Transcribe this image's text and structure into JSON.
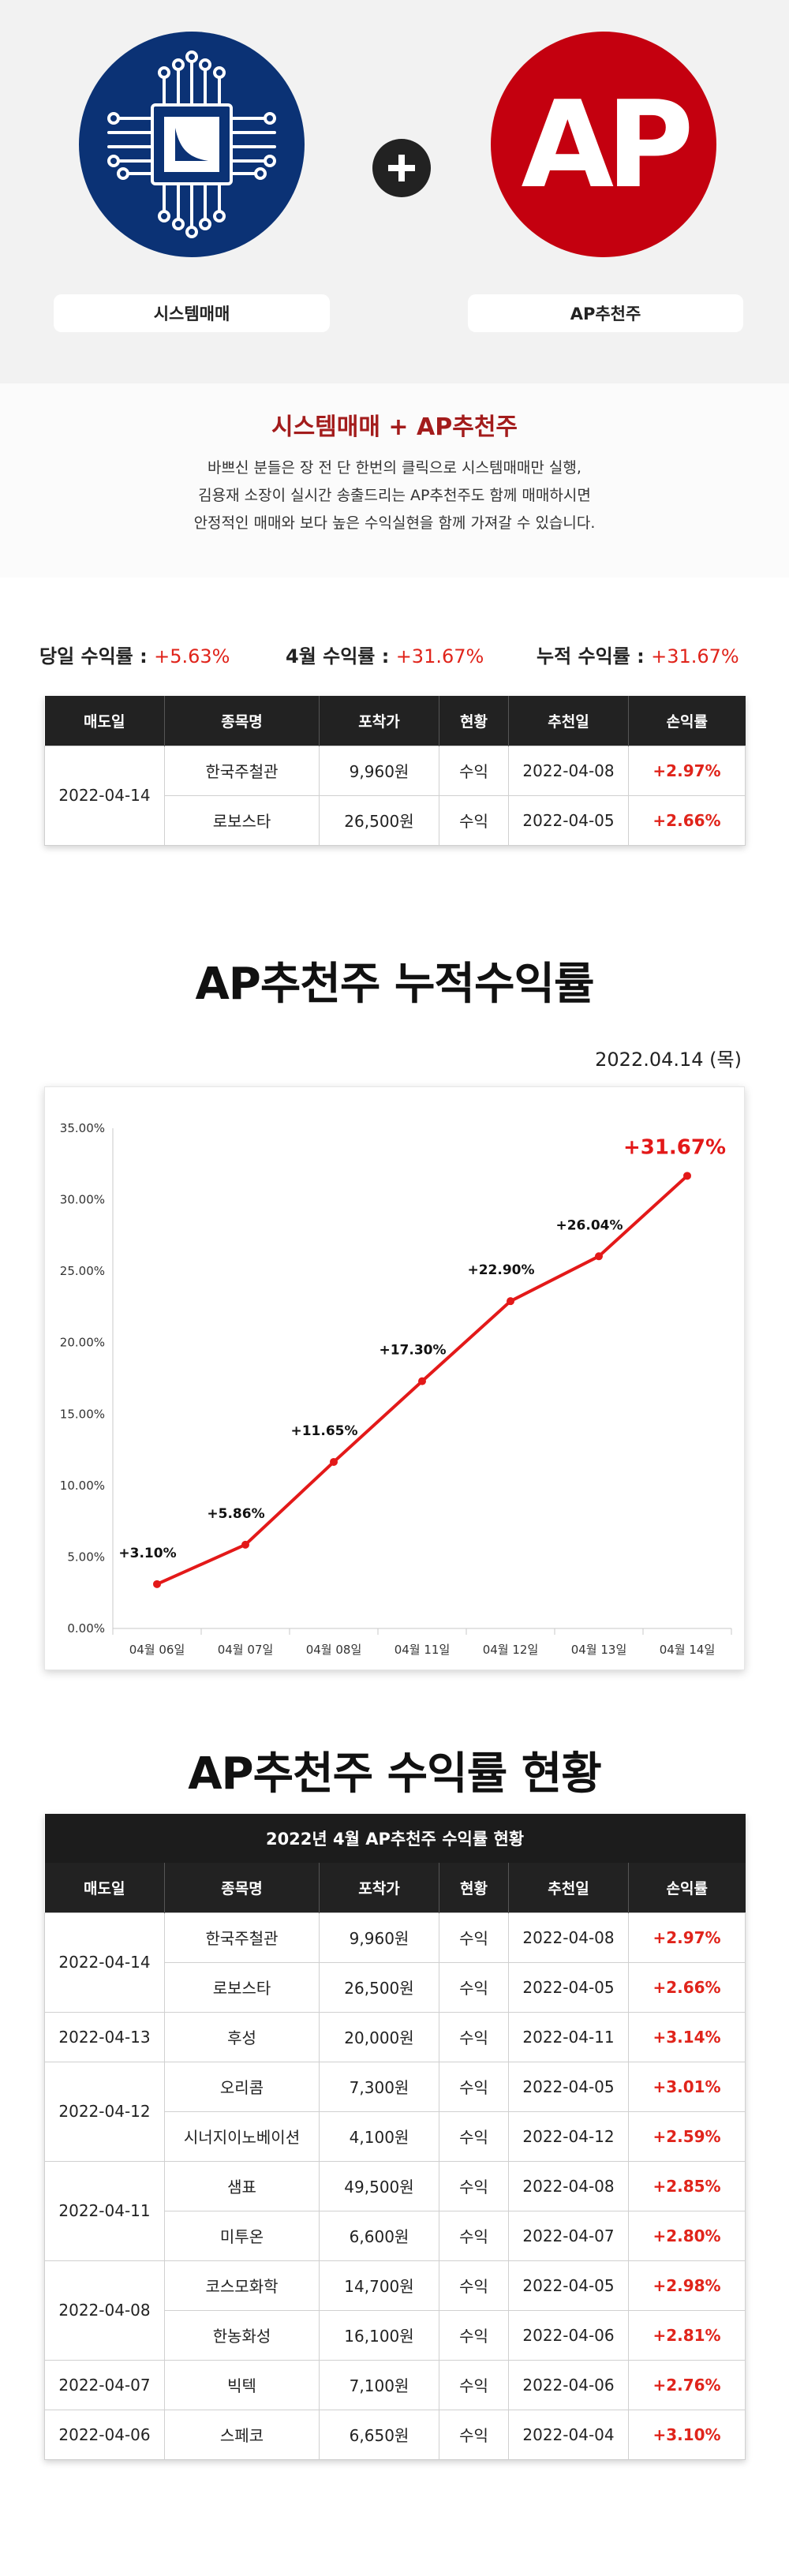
{
  "hero": {
    "left_label": "시스템매매",
    "right_label": "AP추천주",
    "right_logo_text": "AP",
    "colors": {
      "navy": "#0b3275",
      "red": "#c4000f"
    }
  },
  "intro": {
    "title": "시스템매매 + AP추천주",
    "lines": [
      "바쁘신 분들은 장 전 단 한번의 클릭으로 시스템매매만 실행,",
      "김용재 소장이 실시간 송출드리는 AP추천주도 함께 매매하시면",
      "안정적인 매매와 보다 높은 수익실현을 함께 가져갈 수 있습니다."
    ]
  },
  "returns": {
    "today_label": "당일 수익률 : ",
    "today_value": "+5.63%",
    "month_label": "4월 수익률 : ",
    "month_value": "+31.67%",
    "cum_label": "누적 수익률 : ",
    "cum_value": "+31.67%"
  },
  "columns": [
    "매도일",
    "종목명",
    "포착가",
    "현황",
    "추천일",
    "손익률"
  ],
  "today_table": {
    "groups": [
      {
        "date": "2022-04-14",
        "rows": [
          {
            "name": "한국주철관",
            "price": "9,960원",
            "status": "수익",
            "rec": "2022-04-08",
            "pct": "+2.97%"
          },
          {
            "name": "로보스타",
            "price": "26,500원",
            "status": "수익",
            "rec": "2022-04-05",
            "pct": "+2.66%"
          }
        ]
      }
    ]
  },
  "chart_section": {
    "title": "AP추천주 누적수익률",
    "date": "2022.04.14 (목)"
  },
  "chart_data": {
    "type": "line",
    "title": "",
    "categories": [
      "04월 06일",
      "04월 07일",
      "04월 08일",
      "04월 11일",
      "04월 12일",
      "04월 13일",
      "04월 14일"
    ],
    "series": [
      {
        "values": [
          3.1,
          5.86,
          11.65,
          17.3,
          22.9,
          26.04,
          31.67
        ]
      }
    ],
    "data_labels": [
      "+3.10%",
      "+5.86%",
      "+11.65%",
      "+17.30%",
      "+22.90%",
      "+26.04%",
      "+31.67%"
    ],
    "y_ticks": [
      "0.00%",
      "5.00%",
      "10.00%",
      "15.00%",
      "20.00%",
      "25.00%",
      "30.00%",
      "35.00%"
    ],
    "ylim": [
      0,
      35
    ],
    "grid": false,
    "legend": "none",
    "line_color": "#e31919"
  },
  "status_section": {
    "title": "AP추천주 수익률 현황",
    "table_caption": "2022년 4월 AP추천주 수익률 현황",
    "groups": [
      {
        "date": "2022-04-14",
        "rows": [
          {
            "name": "한국주철관",
            "price": "9,960원",
            "status": "수익",
            "rec": "2022-04-08",
            "pct": "+2.97%"
          },
          {
            "name": "로보스타",
            "price": "26,500원",
            "status": "수익",
            "rec": "2022-04-05",
            "pct": "+2.66%"
          }
        ]
      },
      {
        "date": "2022-04-13",
        "rows": [
          {
            "name": "후성",
            "price": "20,000원",
            "status": "수익",
            "rec": "2022-04-11",
            "pct": "+3.14%"
          }
        ]
      },
      {
        "date": "2022-04-12",
        "rows": [
          {
            "name": "오리콤",
            "price": "7,300원",
            "status": "수익",
            "rec": "2022-04-05",
            "pct": "+3.01%"
          },
          {
            "name": "시너지이노베이션",
            "price": "4,100원",
            "status": "수익",
            "rec": "2022-04-12",
            "pct": "+2.59%"
          }
        ]
      },
      {
        "date": "2022-04-11",
        "rows": [
          {
            "name": "샘표",
            "price": "49,500원",
            "status": "수익",
            "rec": "2022-04-08",
            "pct": "+2.85%"
          },
          {
            "name": "미투온",
            "price": "6,600원",
            "status": "수익",
            "rec": "2022-04-07",
            "pct": "+2.80%"
          }
        ]
      },
      {
        "date": "2022-04-08",
        "rows": [
          {
            "name": "코스모화학",
            "price": "14,700원",
            "status": "수익",
            "rec": "2022-04-05",
            "pct": "+2.98%"
          },
          {
            "name": "한농화성",
            "price": "16,100원",
            "status": "수익",
            "rec": "2022-04-06",
            "pct": "+2.81%"
          }
        ]
      },
      {
        "date": "2022-04-07",
        "rows": [
          {
            "name": "빅텍",
            "price": "7,100원",
            "status": "수익",
            "rec": "2022-04-06",
            "pct": "+2.76%"
          }
        ]
      },
      {
        "date": "2022-04-06",
        "rows": [
          {
            "name": "스페코",
            "price": "6,650원",
            "status": "수익",
            "rec": "2022-04-04",
            "pct": "+3.10%"
          }
        ]
      }
    ]
  }
}
